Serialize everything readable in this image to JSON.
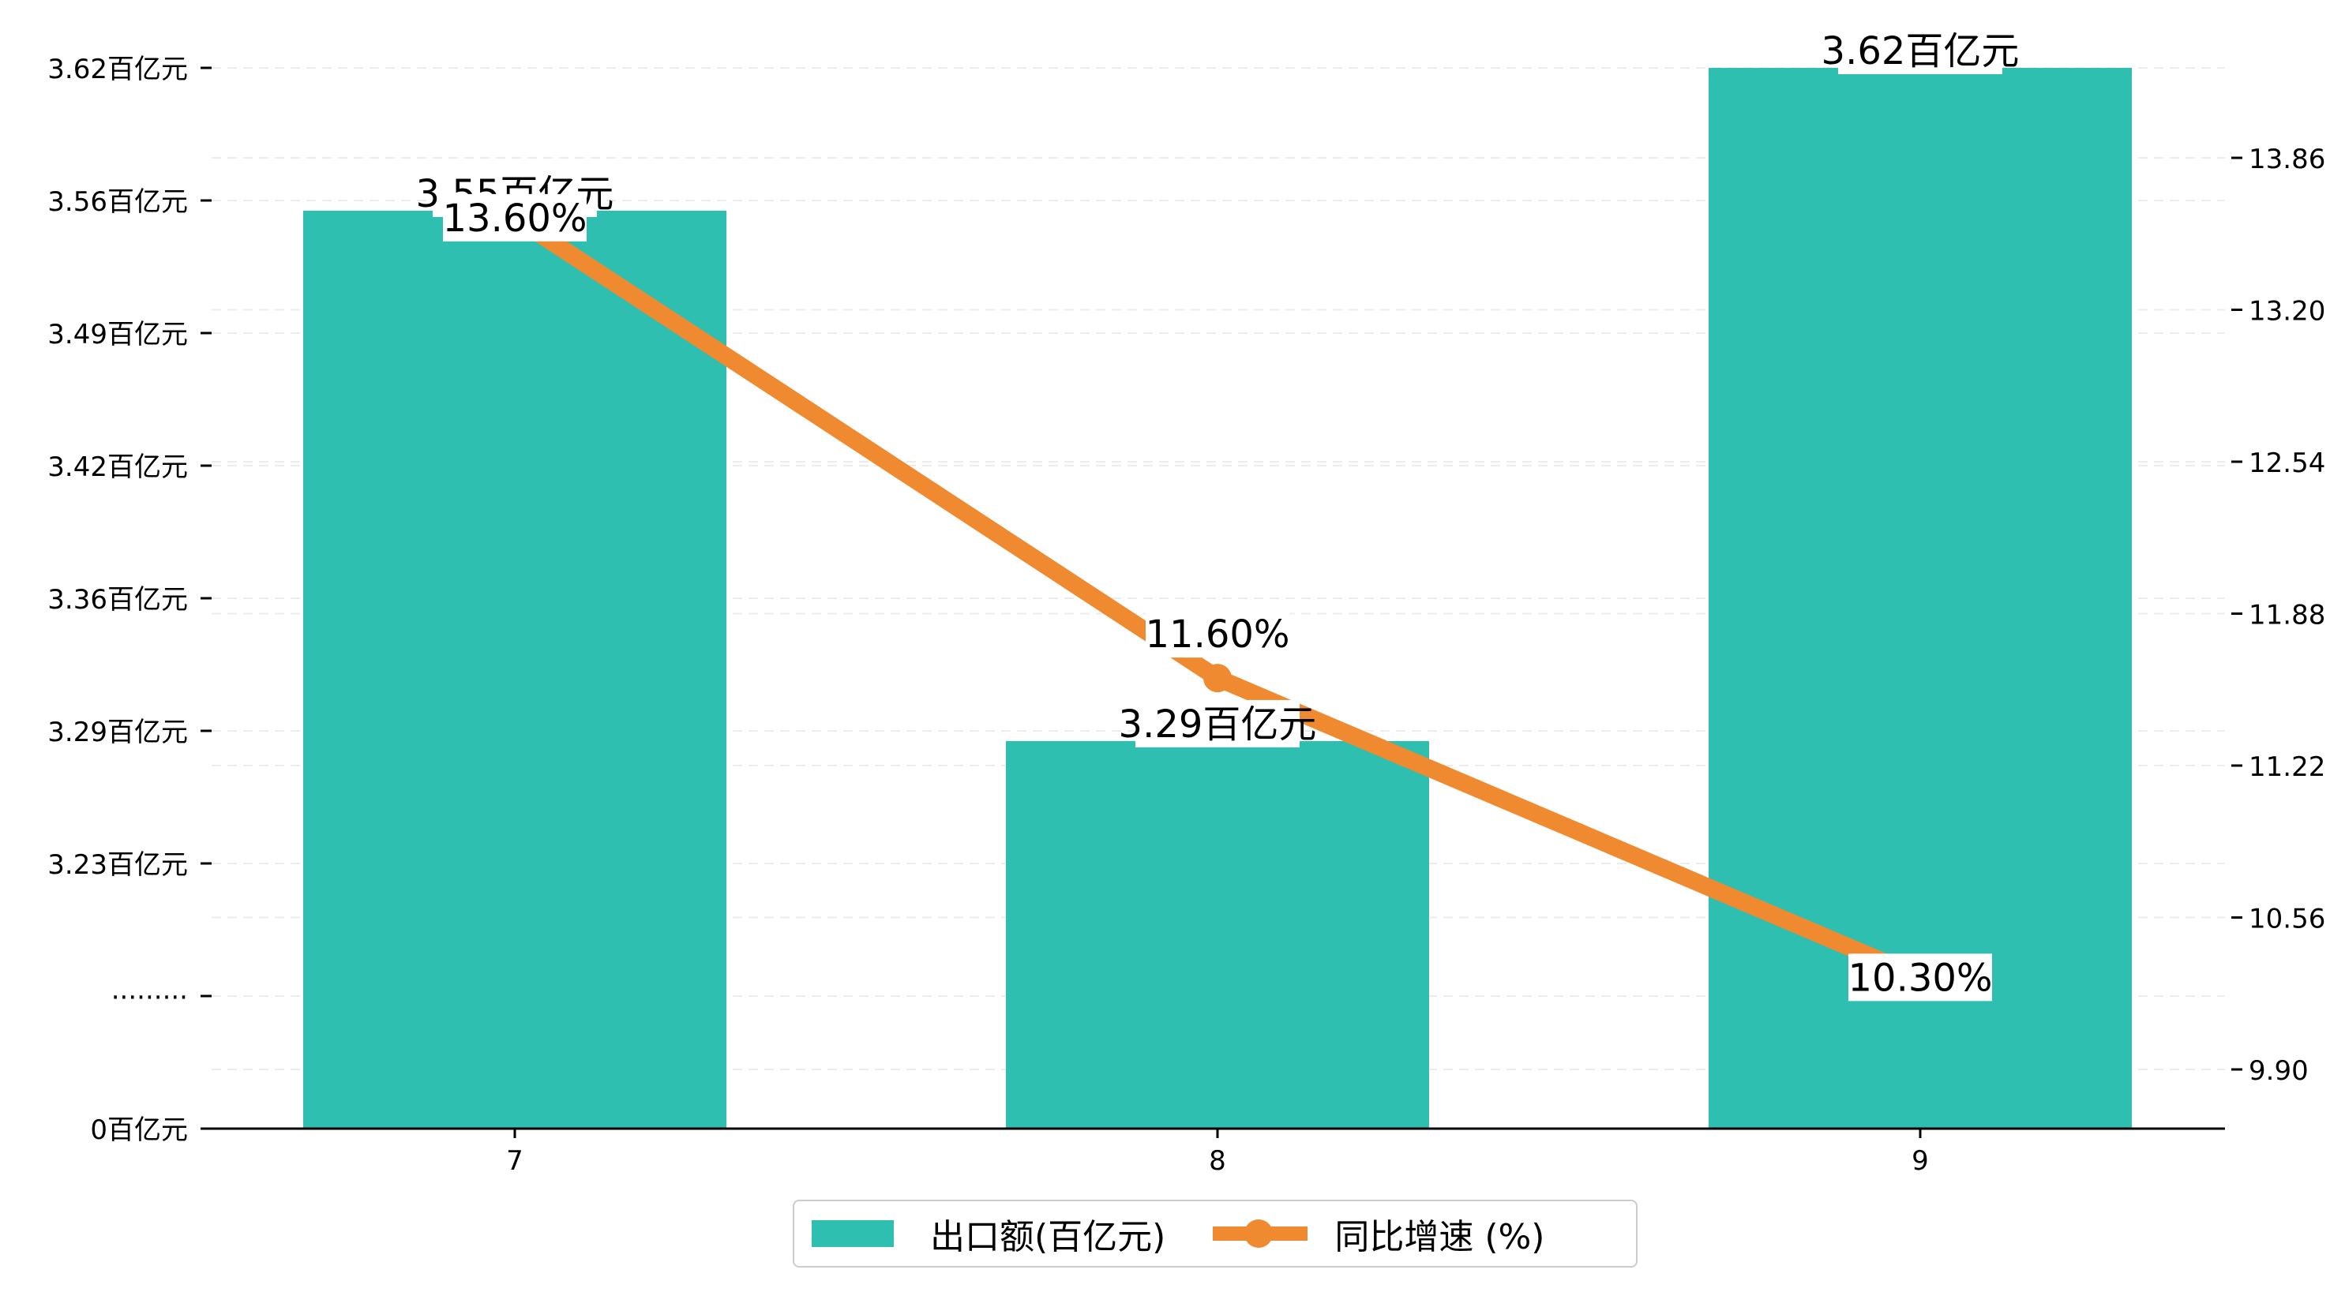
{
  "chart_data": {
    "type": "bar+line",
    "categories": [
      "7",
      "8",
      "9"
    ],
    "bar_series": {
      "name": "出口额(百亿元)",
      "values": [
        3.55,
        3.29,
        3.62
      ],
      "labels": [
        "3.55百亿元",
        "3.29百亿元",
        "3.62百亿元"
      ],
      "color": "#2ebfb0"
    },
    "line_series": {
      "name": "同比增速 (%)",
      "values": [
        13.6,
        11.6,
        10.3
      ],
      "labels": [
        "13.60%",
        "11.60%",
        "10.30%"
      ],
      "color": "#f08a30"
    },
    "y_left": {
      "tick_labels": [
        "0百亿元",
        "·········",
        "3.23百亿元",
        "3.29百亿元",
        "3.36百亿元",
        "3.42百亿元",
        "3.49百亿元",
        "3.56百亿元",
        "3.62百亿元"
      ],
      "tick_values": [
        0,
        null,
        3.23,
        3.29,
        3.36,
        3.42,
        3.49,
        3.56,
        3.62
      ],
      "broken_axis": true
    },
    "y_right": {
      "tick_values": [
        9.9,
        10.56,
        11.22,
        11.88,
        12.54,
        13.2,
        13.86
      ],
      "tick_labels": [
        "9.90",
        "10.56",
        "11.22",
        "11.88",
        "12.54",
        "13.20",
        "13.86"
      ]
    },
    "grid": "horizontal dashed",
    "legend_position": "bottom-center"
  },
  "legend": {
    "bar_label": "出口额(百亿元)",
    "line_label": "同比增速 (%)"
  }
}
